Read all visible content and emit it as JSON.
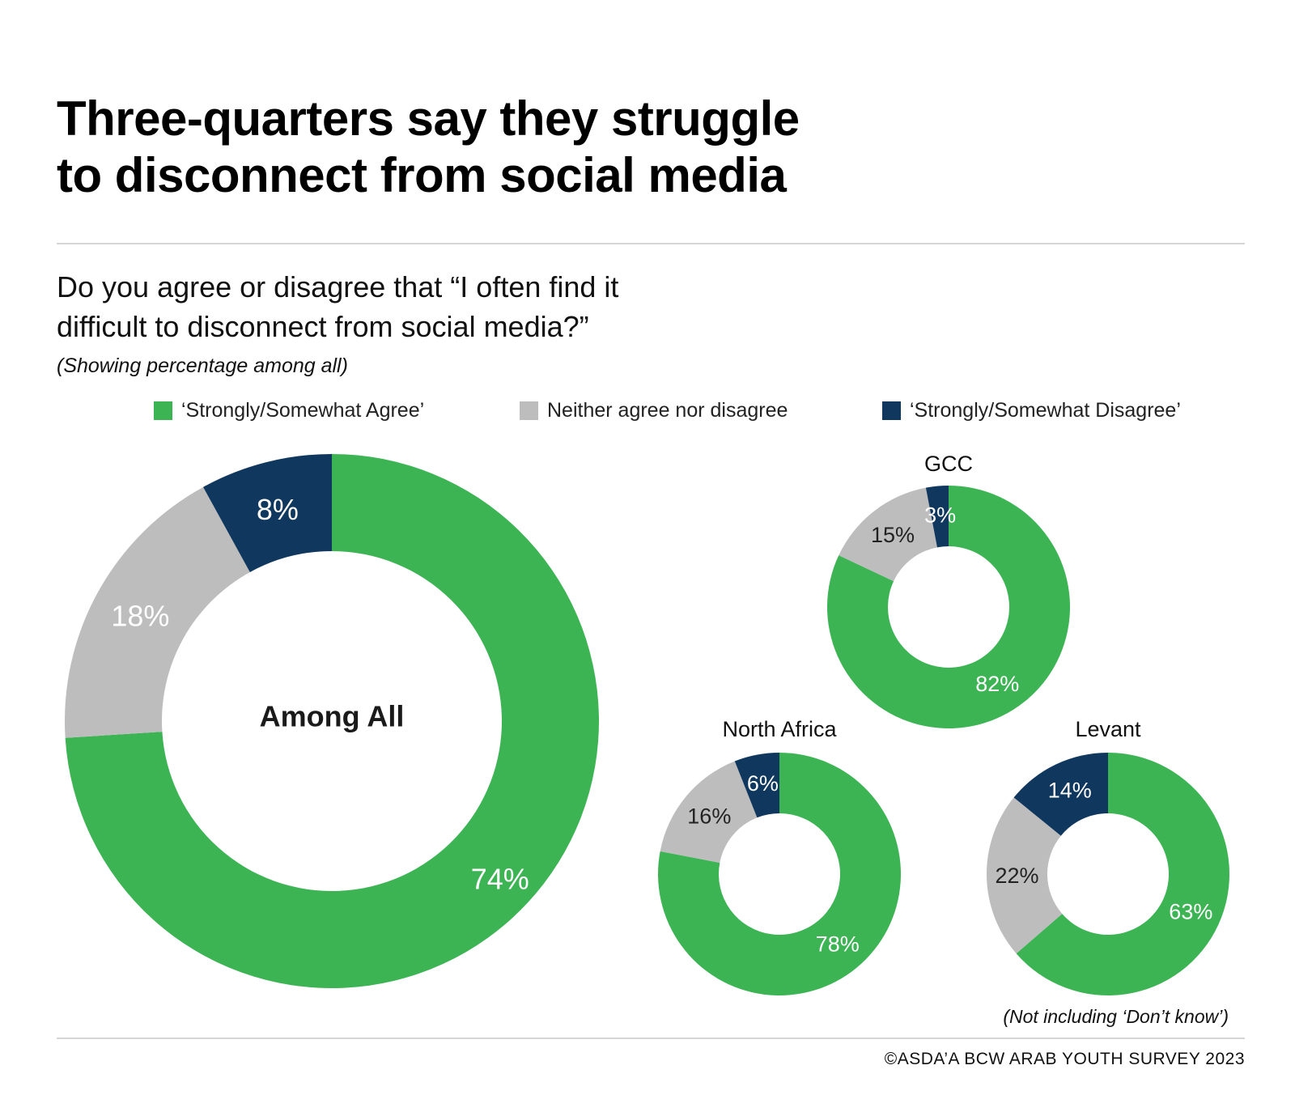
{
  "title_line1": "Three-quarters say they struggle",
  "title_line2": "to disconnect from social media",
  "question_line1": "Do you agree or disagree that “I often find it",
  "question_line2": "difficult to disconnect from social media?”",
  "subnote": "(Showing percentage among all)",
  "footnote": "(Not including ‘Don’t know’)",
  "credit": "©ASDA’A BCW ARAB YOUTH SURVEY 2023",
  "legend": [
    {
      "label": "‘Strongly/Somewhat Agree’",
      "color": "#3db454"
    },
    {
      "label": "Neither agree nor disagree",
      "color": "#bdbdbd"
    },
    {
      "label": "‘Strongly/Somewhat Disagree’",
      "color": "#10385f"
    }
  ],
  "chart_data": [
    {
      "type": "pie",
      "name": "Among All",
      "center_label": "Among All",
      "title": "",
      "categories": [
        "Strongly/Somewhat Agree",
        "Neither agree nor disagree",
        "Strongly/Somewhat Disagree"
      ],
      "values": [
        74,
        18,
        8
      ],
      "labels": [
        "74%",
        "18%",
        "8%"
      ]
    },
    {
      "type": "pie",
      "name": "GCC",
      "center_label": "",
      "title": "GCC",
      "categories": [
        "Strongly/Somewhat Agree",
        "Neither agree nor disagree",
        "Strongly/Somewhat Disagree"
      ],
      "values": [
        82,
        15,
        3
      ],
      "labels": [
        "82%",
        "15%",
        "3%"
      ]
    },
    {
      "type": "pie",
      "name": "North Africa",
      "center_label": "",
      "title": "North Africa",
      "categories": [
        "Strongly/Somewhat Agree",
        "Neither agree nor disagree",
        "Strongly/Somewhat Disagree"
      ],
      "values": [
        78,
        16,
        6
      ],
      "labels": [
        "78%",
        "16%",
        "6%"
      ]
    },
    {
      "type": "pie",
      "name": "Levant",
      "center_label": "",
      "title": "Levant",
      "categories": [
        "Strongly/Somewhat Agree",
        "Neither agree nor disagree",
        "Strongly/Somewhat Disagree"
      ],
      "values": [
        63,
        22,
        14
      ],
      "labels": [
        "63%",
        "22%",
        "14%"
      ]
    }
  ]
}
